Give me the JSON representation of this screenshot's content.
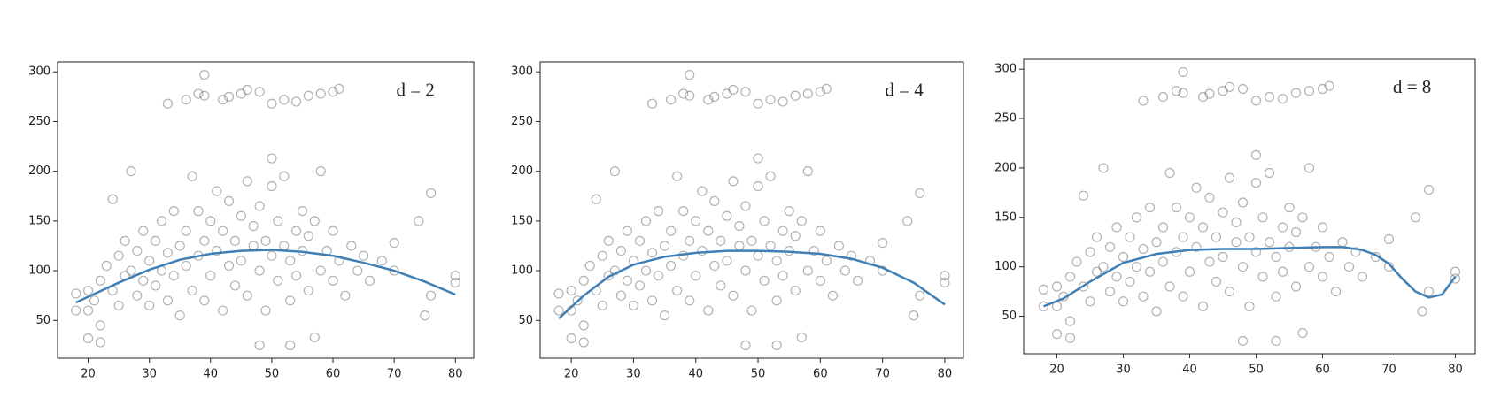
{
  "chart_data": [
    {
      "type": "scatter",
      "annotation": "d = 2",
      "xlim": [
        15,
        83
      ],
      "ylim": [
        12,
        310
      ],
      "xticks": [
        20,
        30,
        40,
        50,
        60,
        70,
        80
      ],
      "yticks": [
        50,
        100,
        150,
        200,
        250,
        300
      ],
      "series": [
        {
          "type": "scatter",
          "color": "#555555",
          "x": [
            33,
            36,
            38,
            39,
            39,
            42,
            43,
            45,
            46,
            48,
            50,
            52,
            54,
            56,
            58,
            60,
            61,
            74,
            76,
            75,
            70,
            80,
            80,
            76,
            53,
            48,
            27,
            50,
            18,
            18,
            20,
            22,
            24,
            57,
            20,
            20,
            21,
            22,
            22,
            23,
            24,
            25,
            25,
            26,
            26,
            27,
            28,
            28,
            29,
            29,
            30,
            30,
            31,
            31,
            32,
            32,
            33,
            33,
            34,
            34,
            35,
            35,
            36,
            36,
            37,
            37,
            38,
            38,
            39,
            39,
            40,
            40,
            41,
            41,
            42,
            42,
            43,
            43,
            44,
            44,
            45,
            45,
            46,
            46,
            47,
            47,
            48,
            48,
            49,
            49,
            50,
            50,
            51,
            51,
            52,
            52,
            53,
            53,
            54,
            54,
            55,
            55,
            56,
            56,
            57,
            58,
            58,
            59,
            60,
            60,
            61,
            62,
            63,
            64,
            65,
            66,
            68,
            70
          ],
          "values": [
            268,
            272,
            278,
            297,
            276,
            272,
            275,
            278,
            282,
            280,
            268,
            272,
            270,
            276,
            278,
            280,
            283,
            150,
            178,
            55,
            128,
            95,
            88,
            75,
            25,
            25,
            200,
            213,
            60,
            77,
            32,
            28,
            172,
            33,
            60,
            80,
            70,
            90,
            45,
            105,
            80,
            115,
            65,
            95,
            130,
            100,
            75,
            120,
            140,
            90,
            110,
            65,
            130,
            85,
            150,
            100,
            70,
            118,
            160,
            95,
            125,
            55,
            140,
            105,
            195,
            80,
            160,
            115,
            130,
            70,
            150,
            95,
            180,
            120,
            60,
            140,
            105,
            170,
            85,
            130,
            155,
            110,
            190,
            75,
            125,
            145,
            100,
            165,
            60,
            130,
            115,
            185,
            90,
            150,
            125,
            195,
            70,
            110,
            140,
            95,
            160,
            120,
            80,
            135,
            150,
            100,
            200,
            120,
            90,
            140,
            110,
            75,
            125,
            100,
            115,
            90,
            110,
            100
          ]
        },
        {
          "type": "line",
          "color": "#3f7fb5",
          "x": [
            18,
            25,
            30,
            35,
            40,
            45,
            50,
            55,
            60,
            65,
            70,
            75,
            80
          ],
          "values": [
            68,
            88,
            101,
            111,
            117,
            120,
            121,
            119,
            115,
            108,
            100,
            89,
            76
          ]
        }
      ]
    },
    {
      "type": "scatter",
      "annotation": "d = 4",
      "xlim": [
        15,
        83
      ],
      "ylim": [
        12,
        310
      ],
      "xticks": [
        20,
        30,
        40,
        50,
        60,
        70,
        80
      ],
      "yticks": [
        50,
        100,
        150,
        200,
        250,
        300
      ],
      "series": [
        {
          "type": "scatter",
          "color": "#555555",
          "x": [
            33,
            36,
            38,
            39,
            39,
            42,
            43,
            45,
            46,
            48,
            50,
            52,
            54,
            56,
            58,
            60,
            61,
            74,
            76,
            75,
            70,
            80,
            80,
            76,
            53,
            48,
            27,
            50,
            18,
            18,
            20,
            22,
            24,
            57,
            20,
            20,
            21,
            22,
            22,
            23,
            24,
            25,
            25,
            26,
            26,
            27,
            28,
            28,
            29,
            29,
            30,
            30,
            31,
            31,
            32,
            32,
            33,
            33,
            34,
            34,
            35,
            35,
            36,
            36,
            37,
            37,
            38,
            38,
            39,
            39,
            40,
            40,
            41,
            41,
            42,
            42,
            43,
            43,
            44,
            44,
            45,
            45,
            46,
            46,
            47,
            47,
            48,
            48,
            49,
            49,
            50,
            50,
            51,
            51,
            52,
            52,
            53,
            53,
            54,
            54,
            55,
            55,
            56,
            56,
            57,
            58,
            58,
            59,
            60,
            60,
            61,
            62,
            63,
            64,
            65,
            66,
            68,
            70
          ],
          "values": [
            268,
            272,
            278,
            297,
            276,
            272,
            275,
            278,
            282,
            280,
            268,
            272,
            270,
            276,
            278,
            280,
            283,
            150,
            178,
            55,
            128,
            95,
            88,
            75,
            25,
            25,
            200,
            213,
            60,
            77,
            32,
            28,
            172,
            33,
            60,
            80,
            70,
            90,
            45,
            105,
            80,
            115,
            65,
            95,
            130,
            100,
            75,
            120,
            140,
            90,
            110,
            65,
            130,
            85,
            150,
            100,
            70,
            118,
            160,
            95,
            125,
            55,
            140,
            105,
            195,
            80,
            160,
            115,
            130,
            70,
            150,
            95,
            180,
            120,
            60,
            140,
            105,
            170,
            85,
            130,
            155,
            110,
            190,
            75,
            125,
            145,
            100,
            165,
            60,
            130,
            115,
            185,
            90,
            150,
            125,
            195,
            70,
            110,
            140,
            95,
            160,
            120,
            80,
            135,
            150,
            100,
            200,
            120,
            90,
            140,
            110,
            75,
            125,
            100,
            115,
            90,
            110,
            100
          ]
        },
        {
          "type": "line",
          "color": "#3f7fb5",
          "x": [
            18,
            22,
            26,
            30,
            35,
            40,
            45,
            50,
            55,
            60,
            65,
            70,
            75,
            80
          ],
          "values": [
            52,
            75,
            94,
            106,
            114,
            118,
            120,
            120,
            119,
            117,
            112,
            103,
            88,
            66
          ]
        }
      ]
    },
    {
      "type": "scatter",
      "annotation": "d = 8",
      "xlim": [
        15,
        83
      ],
      "ylim": [
        12,
        310
      ],
      "xticks": [
        20,
        30,
        40,
        50,
        60,
        70,
        80
      ],
      "yticks": [
        50,
        100,
        150,
        200,
        250,
        300
      ],
      "series": [
        {
          "type": "scatter",
          "color": "#555555",
          "x": [
            33,
            36,
            38,
            39,
            39,
            42,
            43,
            45,
            46,
            48,
            50,
            52,
            54,
            56,
            58,
            60,
            61,
            74,
            76,
            75,
            70,
            80,
            80,
            76,
            53,
            48,
            27,
            50,
            18,
            18,
            20,
            22,
            24,
            57,
            20,
            20,
            21,
            22,
            22,
            23,
            24,
            25,
            25,
            26,
            26,
            27,
            28,
            28,
            29,
            29,
            30,
            30,
            31,
            31,
            32,
            32,
            33,
            33,
            34,
            34,
            35,
            35,
            36,
            36,
            37,
            37,
            38,
            38,
            39,
            39,
            40,
            40,
            41,
            41,
            42,
            42,
            43,
            43,
            44,
            44,
            45,
            45,
            46,
            46,
            47,
            47,
            48,
            48,
            49,
            49,
            50,
            50,
            51,
            51,
            52,
            52,
            53,
            53,
            54,
            54,
            55,
            55,
            56,
            56,
            57,
            58,
            58,
            59,
            60,
            60,
            61,
            62,
            63,
            64,
            65,
            66,
            68,
            70
          ],
          "values": [
            268,
            272,
            278,
            297,
            276,
            272,
            275,
            278,
            282,
            280,
            268,
            272,
            270,
            276,
            278,
            280,
            283,
            150,
            178,
            55,
            128,
            95,
            88,
            75,
            25,
            25,
            200,
            213,
            60,
            77,
            32,
            28,
            172,
            33,
            60,
            80,
            70,
            90,
            45,
            105,
            80,
            115,
            65,
            95,
            130,
            100,
            75,
            120,
            140,
            90,
            110,
            65,
            130,
            85,
            150,
            100,
            70,
            118,
            160,
            95,
            125,
            55,
            140,
            105,
            195,
            80,
            160,
            115,
            130,
            70,
            150,
            95,
            180,
            120,
            60,
            140,
            105,
            170,
            85,
            130,
            155,
            110,
            190,
            75,
            125,
            145,
            100,
            165,
            60,
            130,
            115,
            185,
            90,
            150,
            125,
            195,
            70,
            110,
            140,
            95,
            160,
            120,
            80,
            135,
            150,
            100,
            200,
            120,
            90,
            140,
            110,
            75,
            125,
            100,
            115,
            90,
            110,
            100
          ]
        },
        {
          "type": "line",
          "color": "#3f7fb5",
          "x": [
            18,
            21,
            25,
            30,
            35,
            40,
            45,
            50,
            55,
            60,
            63,
            66,
            68,
            70,
            72,
            74,
            76,
            78,
            80
          ],
          "values": [
            60,
            68,
            85,
            104,
            113,
            117,
            118,
            118,
            119,
            120,
            120,
            117,
            112,
            103,
            88,
            75,
            69,
            72,
            90
          ]
        }
      ]
    }
  ]
}
